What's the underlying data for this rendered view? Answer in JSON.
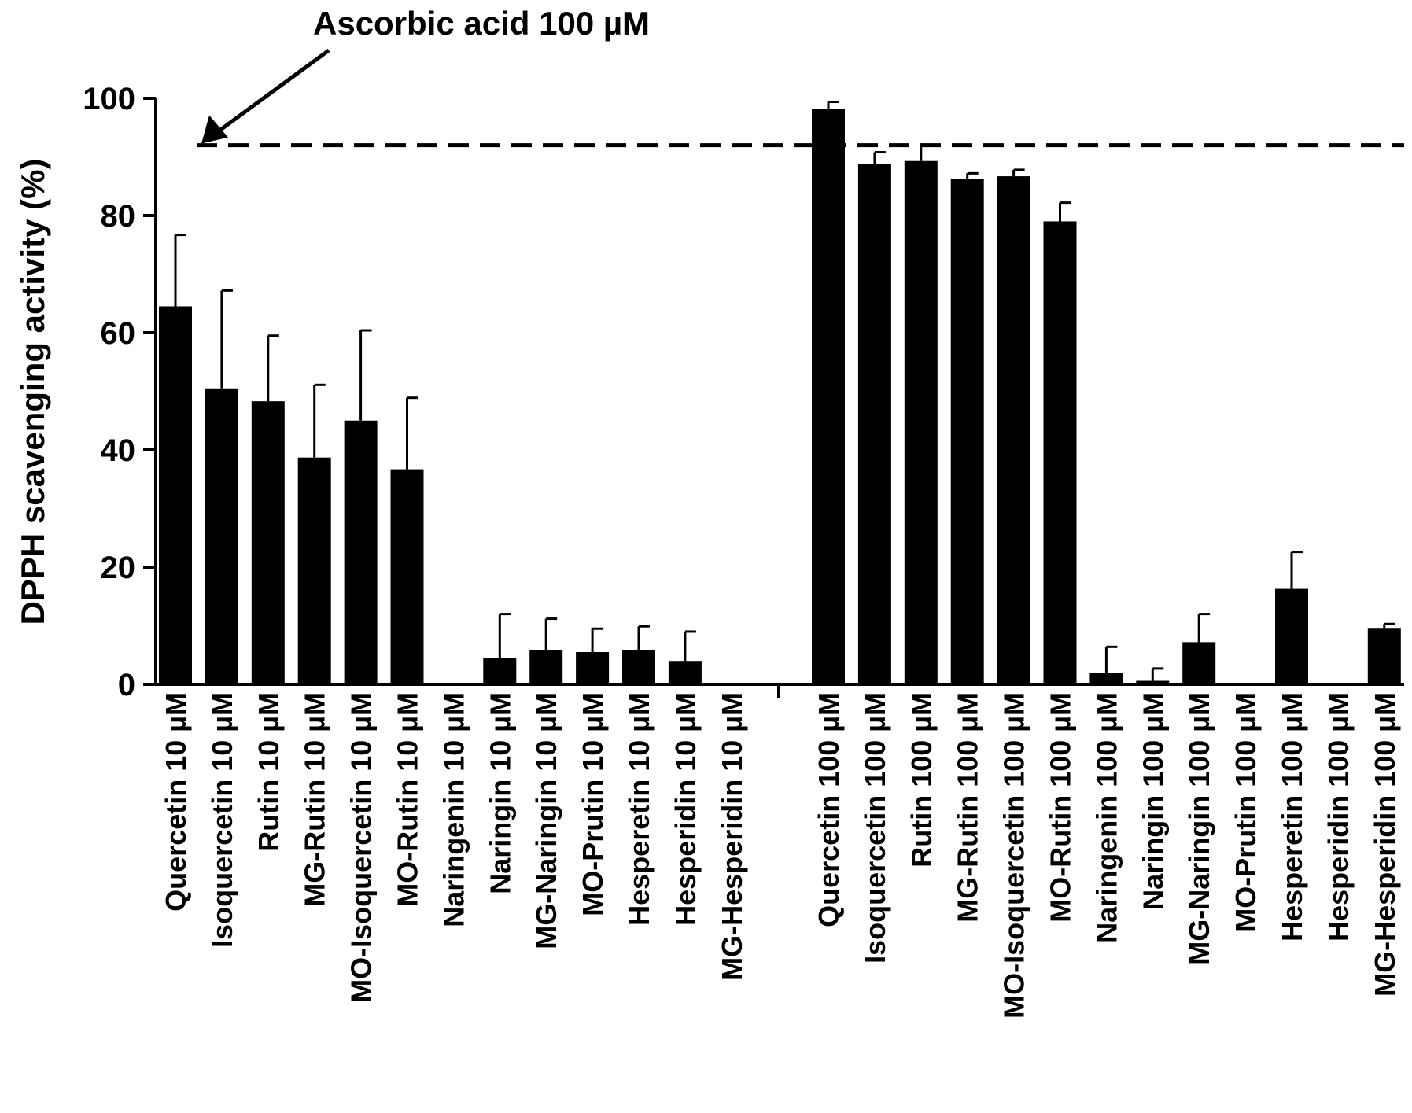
{
  "chart_data": {
    "type": "bar",
    "title": "",
    "xlabel": "",
    "ylabel": "DPPH scavenging activity (%)",
    "ylim": [
      0,
      100
    ],
    "yticks": [
      0,
      20,
      40,
      60,
      80,
      100
    ],
    "grid": false,
    "categories": [
      "Quercetin 10 µM",
      "Isoquercetin 10 µM",
      "Rutin 10 µM",
      "MG-Rutin 10 µM",
      "MO-Isoquercetin 10 µM",
      "MO-Rutin 10 µM",
      "Naringenin 10 µM",
      "Naringin 10 µM",
      "MG-Naringin 10 µM",
      "MO-Prutin 10 µM",
      "Hesperetin 10 µM",
      "Hesperidin 10 µM",
      "MG-Hesperidin 10 µM",
      "Quercetin 100 µM",
      "Isoquercetin 100 µM",
      "Rutin 100 µM",
      "MG-Rutin 100 µM",
      "MO-Isoquercetin 100 µM",
      "MO-Rutin 100 µM",
      "Naringenin 100 µM",
      "Naringin 100 µM",
      "MG-Naringin 100 µM",
      "MO-Prutin 100 µM",
      "Hesperetin 100 µM",
      "Hesperidin 100 µM",
      "MG-Hesperidin 100 µM"
    ],
    "values": [
      64.5,
      50.5,
      48.3,
      38.7,
      45.0,
      36.7,
      0,
      4.5,
      5.9,
      5.5,
      5.9,
      4.0,
      0,
      98.2,
      88.8,
      89.3,
      86.3,
      86.7,
      79.0,
      2.0,
      0.6,
      7.2,
      0,
      16.3,
      0,
      9.5
    ],
    "errors": [
      12.2,
      16.7,
      11.2,
      12.4,
      15.4,
      12.2,
      0,
      7.5,
      5.3,
      4.0,
      4.0,
      5.0,
      0,
      1.2,
      2.0,
      2.8,
      0.9,
      1.1,
      3.2,
      4.4,
      2.1,
      4.8,
      0,
      6.3,
      0,
      0.8
    ],
    "reference_line": {
      "value": 92,
      "label": "Ascorbic acid 100 µM",
      "style": "dashed"
    },
    "bar_color": "#000000"
  }
}
